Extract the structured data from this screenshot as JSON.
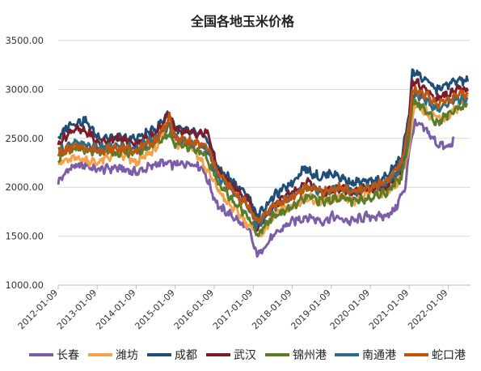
{
  "chart_data": {
    "type": "line",
    "title": "全国各地玉米价格",
    "xlabel": "",
    "ylabel": "",
    "ylim": [
      1000,
      3500
    ],
    "y_ticks": [
      "1000.00",
      "1500.00",
      "2000.00",
      "2500.00",
      "3000.00",
      "3500.00"
    ],
    "x_range": [
      2012.0,
      2022.57
    ],
    "x_ticks": [
      {
        "label": "2012-01-09",
        "x": 2012.0
      },
      {
        "label": "2013-01-09",
        "x": 2013.0
      },
      {
        "label": "2014-01-09",
        "x": 2014.0
      },
      {
        "label": "2015-01-09",
        "x": 2015.0
      },
      {
        "label": "2016-01-09",
        "x": 2016.0
      },
      {
        "label": "2017-01-09",
        "x": 2017.0
      },
      {
        "label": "2018-01-09",
        "x": 2018.0
      },
      {
        "label": "2019-01-09",
        "x": 2019.0
      },
      {
        "label": "2020-01-09",
        "x": 2020.0
      },
      {
        "label": "2021-01-09",
        "x": 2021.0
      },
      {
        "label": "2022-01-09",
        "x": 2022.0
      }
    ],
    "grid": true,
    "legend_position": "bottom",
    "series": [
      {
        "name": "长春",
        "color": "#7b5ea7",
        "points": [
          [
            2012.0,
            2050
          ],
          [
            2012.3,
            2200
          ],
          [
            2012.7,
            2230
          ],
          [
            2013.0,
            2180
          ],
          [
            2013.5,
            2200
          ],
          [
            2014.0,
            2150
          ],
          [
            2014.6,
            2250
          ],
          [
            2015.0,
            2230
          ],
          [
            2015.4,
            2250
          ],
          [
            2015.7,
            2200
          ],
          [
            2015.9,
            2000
          ],
          [
            2016.1,
            1800
          ],
          [
            2016.5,
            1700
          ],
          [
            2016.9,
            1550
          ],
          [
            2017.1,
            1300
          ],
          [
            2017.4,
            1450
          ],
          [
            2017.8,
            1600
          ],
          [
            2018.0,
            1650
          ],
          [
            2018.4,
            1700
          ],
          [
            2018.8,
            1650
          ],
          [
            2019.0,
            1700
          ],
          [
            2019.5,
            1650
          ],
          [
            2019.9,
            1700
          ],
          [
            2020.3,
            1700
          ],
          [
            2020.6,
            1750
          ],
          [
            2020.9,
            2000
          ],
          [
            2021.0,
            2400
          ],
          [
            2021.15,
            2650
          ],
          [
            2021.4,
            2600
          ],
          [
            2021.7,
            2450
          ],
          [
            2022.0,
            2400
          ],
          [
            2022.15,
            2500
          ]
        ]
      },
      {
        "name": "潍坊",
        "color": "#f5a04a",
        "points": [
          [
            2012.0,
            2250
          ],
          [
            2012.5,
            2300
          ],
          [
            2013.0,
            2250
          ],
          [
            2013.5,
            2350
          ],
          [
            2014.0,
            2250
          ],
          [
            2014.5,
            2400
          ],
          [
            2014.85,
            2650
          ],
          [
            2015.0,
            2400
          ],
          [
            2015.3,
            2500
          ],
          [
            2015.7,
            2250
          ],
          [
            2016.0,
            2050
          ],
          [
            2016.3,
            1850
          ],
          [
            2016.6,
            1750
          ],
          [
            2016.9,
            1600
          ],
          [
            2017.2,
            1500
          ],
          [
            2017.6,
            1750
          ],
          [
            2018.0,
            1800
          ],
          [
            2018.4,
            1900
          ],
          [
            2018.8,
            1850
          ],
          [
            2019.2,
            1900
          ],
          [
            2019.6,
            1850
          ],
          [
            2020.0,
            1950
          ],
          [
            2020.4,
            1950
          ],
          [
            2020.7,
            2050
          ],
          [
            2020.95,
            2300
          ],
          [
            2021.15,
            2850
          ],
          [
            2021.5,
            2750
          ],
          [
            2021.9,
            2700
          ],
          [
            2022.2,
            2800
          ],
          [
            2022.5,
            2950
          ]
        ]
      },
      {
        "name": "成都",
        "color": "#1f4e79",
        "points": [
          [
            2012.0,
            2500
          ],
          [
            2012.3,
            2650
          ],
          [
            2012.7,
            2680
          ],
          [
            2013.0,
            2520
          ],
          [
            2013.5,
            2500
          ],
          [
            2014.0,
            2500
          ],
          [
            2014.5,
            2600
          ],
          [
            2014.85,
            2750
          ],
          [
            2015.0,
            2600
          ],
          [
            2015.5,
            2550
          ],
          [
            2015.8,
            2500
          ],
          [
            2016.1,
            2200
          ],
          [
            2016.5,
            2050
          ],
          [
            2016.9,
            1900
          ],
          [
            2017.1,
            1700
          ],
          [
            2017.5,
            1900
          ],
          [
            2018.0,
            2050
          ],
          [
            2018.3,
            2200
          ],
          [
            2018.7,
            2100
          ],
          [
            2019.0,
            2150
          ],
          [
            2019.5,
            2050
          ],
          [
            2020.0,
            2050
          ],
          [
            2020.4,
            2100
          ],
          [
            2020.8,
            2300
          ],
          [
            2021.0,
            2750
          ],
          [
            2021.08,
            3200
          ],
          [
            2021.4,
            3100
          ],
          [
            2021.7,
            3000
          ],
          [
            2022.0,
            3050
          ],
          [
            2022.3,
            3100
          ],
          [
            2022.5,
            3080
          ]
        ]
      },
      {
        "name": "武汉",
        "color": "#7b1c2a",
        "points": [
          [
            2012.0,
            2450
          ],
          [
            2012.4,
            2600
          ],
          [
            2012.8,
            2550
          ],
          [
            2013.0,
            2450
          ],
          [
            2013.5,
            2500
          ],
          [
            2014.0,
            2450
          ],
          [
            2014.5,
            2550
          ],
          [
            2014.85,
            2750
          ],
          [
            2015.0,
            2600
          ],
          [
            2015.5,
            2550
          ],
          [
            2015.85,
            2550
          ],
          [
            2016.1,
            2150
          ],
          [
            2016.5,
            2000
          ],
          [
            2016.9,
            1850
          ],
          [
            2017.1,
            1600
          ],
          [
            2017.5,
            1800
          ],
          [
            2018.0,
            1950
          ],
          [
            2018.4,
            2050
          ],
          [
            2018.8,
            1950
          ],
          [
            2019.2,
            2000
          ],
          [
            2019.6,
            1950
          ],
          [
            2020.0,
            2000
          ],
          [
            2020.4,
            2000
          ],
          [
            2020.8,
            2200
          ],
          [
            2021.0,
            2700
          ],
          [
            2021.08,
            3100
          ],
          [
            2021.4,
            3000
          ],
          [
            2021.7,
            2900
          ],
          [
            2022.0,
            2950
          ],
          [
            2022.3,
            3000
          ],
          [
            2022.5,
            2980
          ]
        ]
      },
      {
        "name": "锦州港",
        "color": "#5b7d2a",
        "points": [
          [
            2012.0,
            2300
          ],
          [
            2012.4,
            2400
          ],
          [
            2012.8,
            2350
          ],
          [
            2013.0,
            2380
          ],
          [
            2013.5,
            2350
          ],
          [
            2014.0,
            2350
          ],
          [
            2014.5,
            2450
          ],
          [
            2014.85,
            2550
          ],
          [
            2015.0,
            2450
          ],
          [
            2015.5,
            2400
          ],
          [
            2015.8,
            2300
          ],
          [
            2016.1,
            2050
          ],
          [
            2016.5,
            1850
          ],
          [
            2016.9,
            1700
          ],
          [
            2017.1,
            1500
          ],
          [
            2017.5,
            1700
          ],
          [
            2018.0,
            1800
          ],
          [
            2018.4,
            1900
          ],
          [
            2018.8,
            1850
          ],
          [
            2019.2,
            1900
          ],
          [
            2019.6,
            1850
          ],
          [
            2020.0,
            1900
          ],
          [
            2020.4,
            1950
          ],
          [
            2020.8,
            2100
          ],
          [
            2021.0,
            2500
          ],
          [
            2021.08,
            2900
          ],
          [
            2021.4,
            2800
          ],
          [
            2021.7,
            2650
          ],
          [
            2022.0,
            2750
          ],
          [
            2022.3,
            2800
          ],
          [
            2022.5,
            2850
          ]
        ]
      },
      {
        "name": "南通港",
        "color": "#2e6e85",
        "points": [
          [
            2012.0,
            2380
          ],
          [
            2012.5,
            2450
          ],
          [
            2013.0,
            2400
          ],
          [
            2013.5,
            2420
          ],
          [
            2014.0,
            2400
          ],
          [
            2014.5,
            2500
          ],
          [
            2014.85,
            2650
          ],
          [
            2015.0,
            2500
          ],
          [
            2015.5,
            2450
          ],
          [
            2015.8,
            2400
          ],
          [
            2016.1,
            2100
          ],
          [
            2016.5,
            1950
          ],
          [
            2016.9,
            1800
          ],
          [
            2017.1,
            1600
          ],
          [
            2017.5,
            1800
          ],
          [
            2018.0,
            1900
          ],
          [
            2018.4,
            2000
          ],
          [
            2018.8,
            1950
          ],
          [
            2019.2,
            2000
          ],
          [
            2019.6,
            1950
          ],
          [
            2020.0,
            2000
          ],
          [
            2020.4,
            2050
          ],
          [
            2020.8,
            2200
          ],
          [
            2021.0,
            2600
          ],
          [
            2021.08,
            2950
          ],
          [
            2021.4,
            2900
          ],
          [
            2021.7,
            2800
          ],
          [
            2022.0,
            2850
          ],
          [
            2022.3,
            2900
          ],
          [
            2022.5,
            2900
          ]
        ]
      },
      {
        "name": "蛇口港",
        "color": "#c0560e",
        "points": [
          [
            2012.0,
            2350
          ],
          [
            2012.5,
            2420
          ],
          [
            2013.0,
            2380
          ],
          [
            2013.5,
            2400
          ],
          [
            2014.0,
            2380
          ],
          [
            2014.5,
            2480
          ],
          [
            2014.85,
            2700
          ],
          [
            2015.0,
            2500
          ],
          [
            2015.5,
            2450
          ],
          [
            2015.8,
            2420
          ],
          [
            2016.1,
            2150
          ],
          [
            2016.5,
            1950
          ],
          [
            2016.9,
            1800
          ],
          [
            2017.1,
            1650
          ],
          [
            2017.5,
            1800
          ],
          [
            2018.0,
            1900
          ],
          [
            2018.4,
            2000
          ],
          [
            2018.8,
            1950
          ],
          [
            2019.2,
            2000
          ],
          [
            2019.6,
            1950
          ],
          [
            2020.0,
            2000
          ],
          [
            2020.4,
            2050
          ],
          [
            2020.8,
            2250
          ],
          [
            2021.0,
            2650
          ],
          [
            2021.08,
            3000
          ],
          [
            2021.4,
            2950
          ],
          [
            2021.7,
            2850
          ],
          [
            2022.0,
            2900
          ],
          [
            2022.3,
            2950
          ],
          [
            2022.5,
            2950
          ]
        ]
      }
    ]
  }
}
